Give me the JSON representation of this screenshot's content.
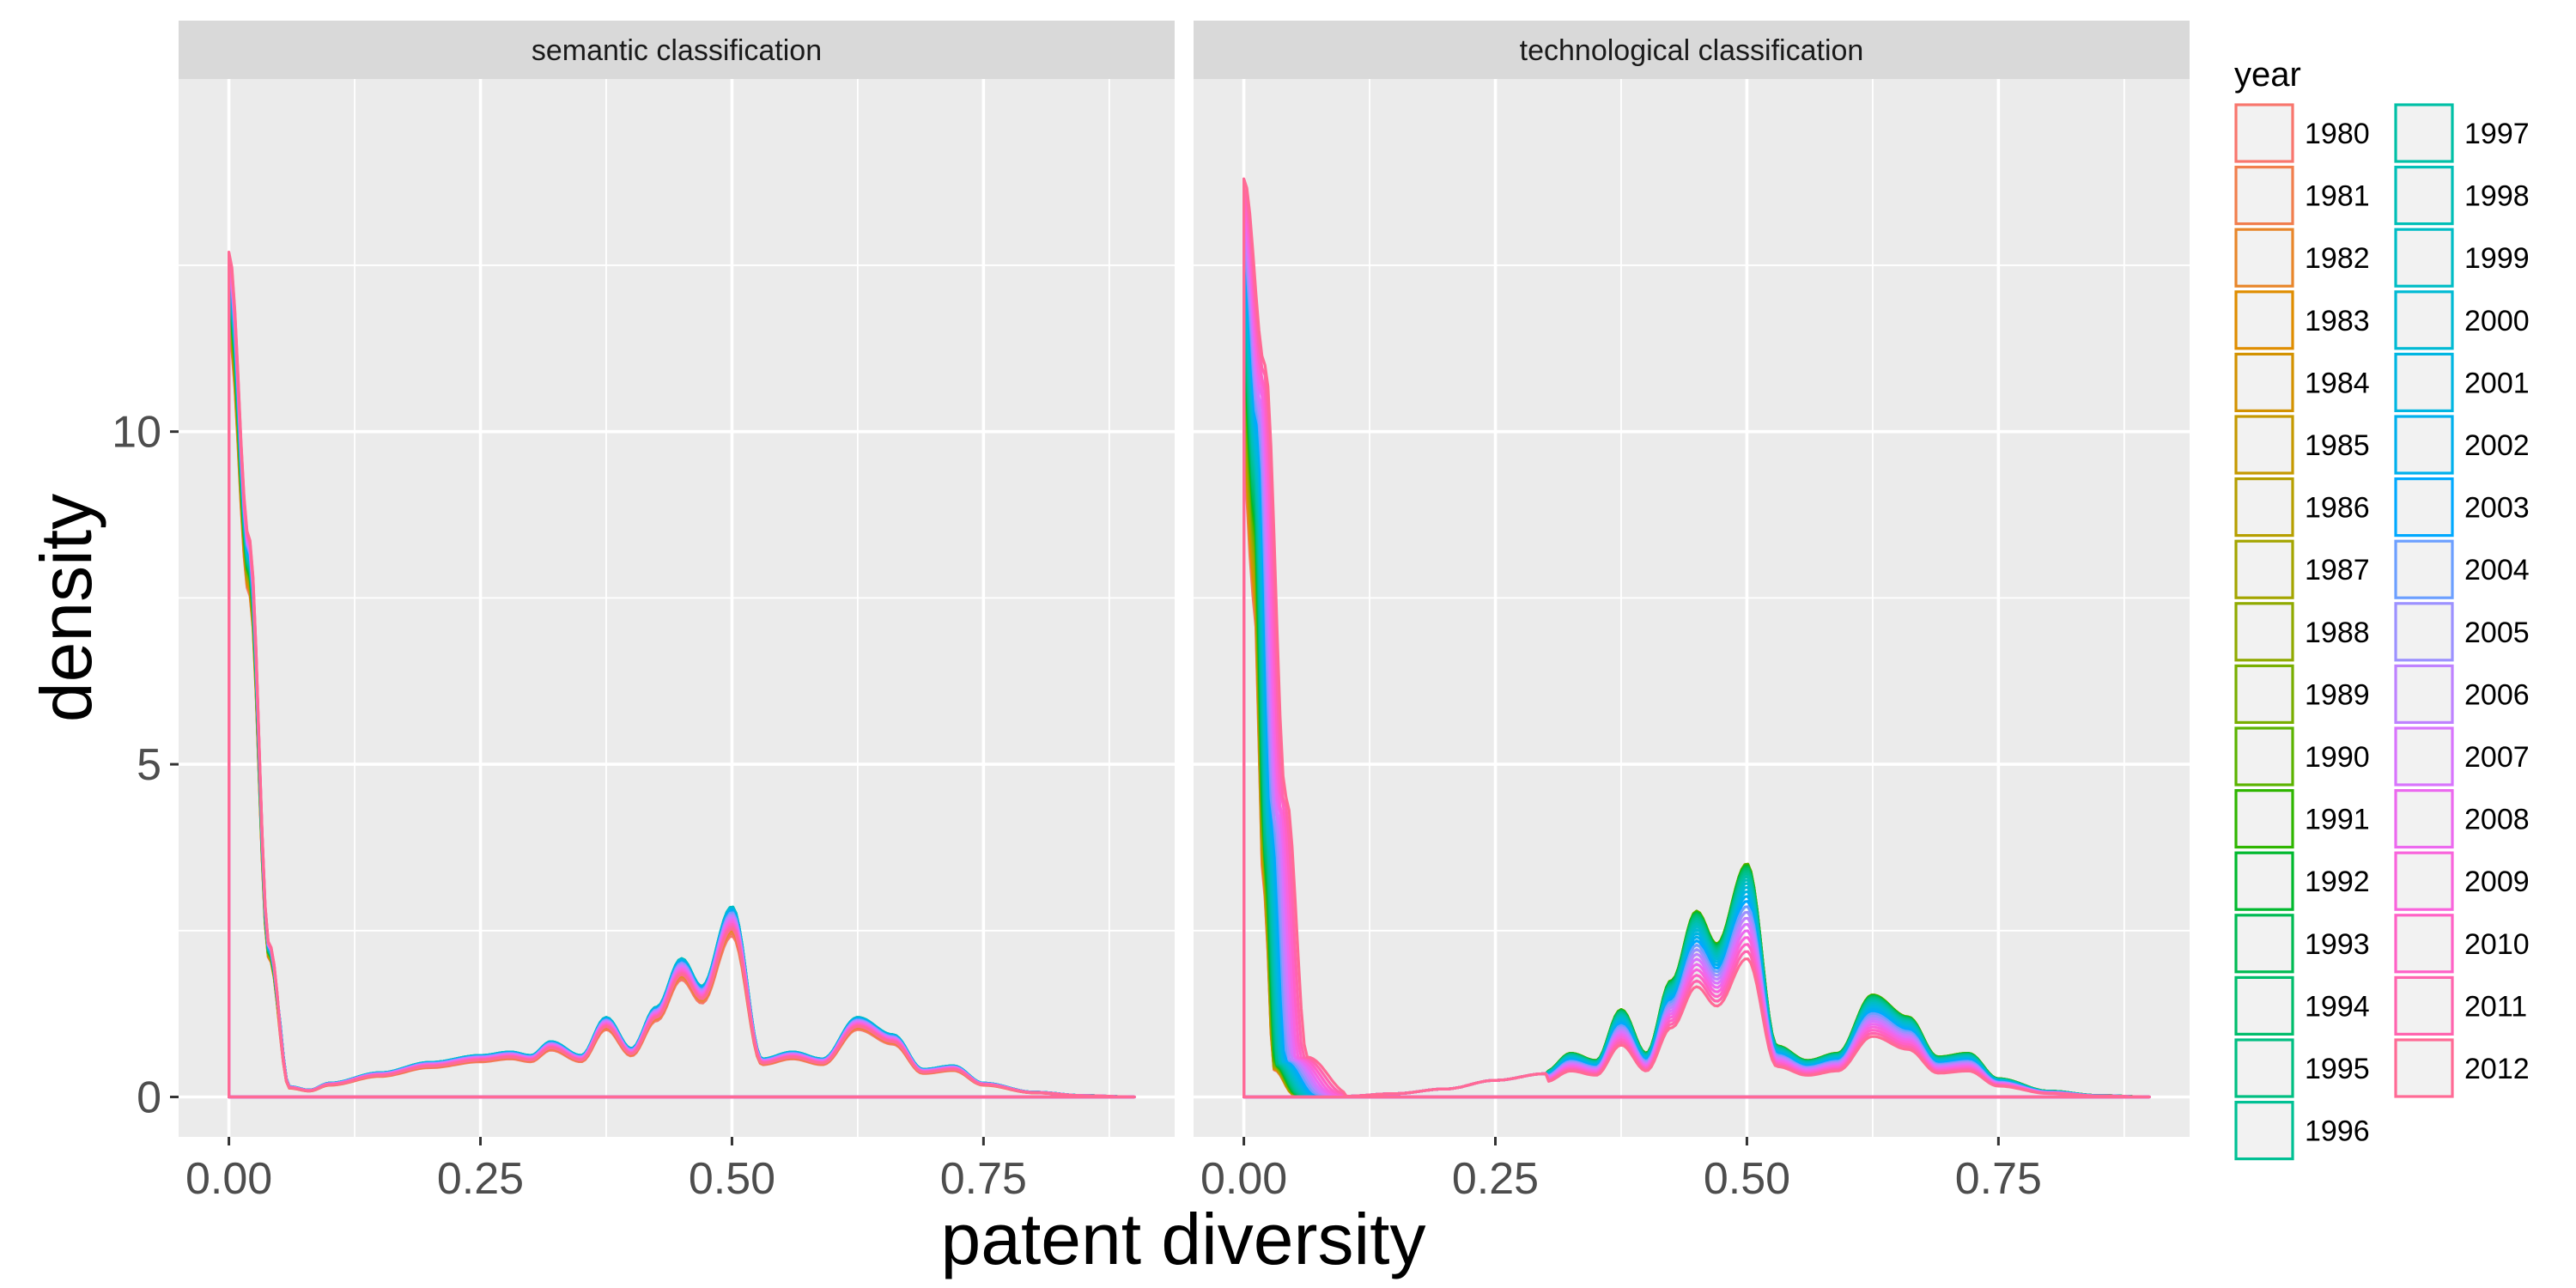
{
  "chart_data": {
    "type": "line",
    "subtype": "density",
    "xlabel": "patent diversity",
    "ylabel": "density",
    "xlim": [
      -0.05,
      0.94
    ],
    "ylim": [
      -0.6,
      15.3
    ],
    "x_ticks": [
      0.0,
      0.25,
      0.5,
      0.75
    ],
    "x_tick_labels": [
      "0.00",
      "0.25",
      "0.50",
      "0.75"
    ],
    "x_minor_ticks": [
      0.125,
      0.375,
      0.625,
      0.875
    ],
    "y_ticks": [
      0,
      5,
      10
    ],
    "y_tick_labels": [
      "0",
      "5",
      "10"
    ],
    "y_minor_ticks": [
      2.5,
      7.5,
      12.5
    ],
    "grid": true,
    "legend": {
      "title": "year",
      "placement": "right",
      "columns": 2,
      "entries": [
        "1980",
        "1981",
        "1982",
        "1983",
        "1984",
        "1985",
        "1986",
        "1987",
        "1988",
        "1989",
        "1990",
        "1991",
        "1992",
        "1993",
        "1994",
        "1995",
        "1996",
        "1997",
        "1998",
        "1999",
        "2000",
        "2001",
        "2002",
        "2003",
        "2004",
        "2005",
        "2006",
        "2007",
        "2008",
        "2009",
        "2010",
        "2011",
        "2012"
      ]
    },
    "series_colors": [
      "#f8766d",
      "#f17e4d",
      "#e8862a",
      "#df8d00",
      "#d39200",
      "#c59900",
      "#b69f00",
      "#a4a500",
      "#90aa00",
      "#78ae00",
      "#5bb300",
      "#2fb600",
      "#00b92e",
      "#00bb53",
      "#00bd6c",
      "#00bf82",
      "#00c094",
      "#00c0a6",
      "#00bfb7",
      "#00bdc6",
      "#00bad4",
      "#00b6e2",
      "#00b0ed",
      "#00a9ff",
      "#6c9fff",
      "#9c91ff",
      "#be82ff",
      "#d874fd",
      "#ec69ef",
      "#f964dc",
      "#ff61c6",
      "#ff64ae",
      "#ff6a95"
    ],
    "facets": [
      {
        "label": "semantic classification",
        "base_curve": {
          "x": [
            0.0,
            0.02,
            0.04,
            0.06,
            0.08,
            0.1,
            0.15,
            0.2,
            0.25,
            0.28,
            0.3,
            0.32,
            0.35,
            0.375,
            0.4,
            0.425,
            0.45,
            0.47,
            0.5,
            0.53,
            0.56,
            0.59,
            0.625,
            0.66,
            0.69,
            0.72,
            0.75,
            0.8,
            0.85,
            0.9
          ],
          "y": [
            12.7,
            8.4,
            2.3,
            0.15,
            0.1,
            0.2,
            0.35,
            0.5,
            0.6,
            0.65,
            0.6,
            0.8,
            0.6,
            1.15,
            0.7,
            1.3,
            2.0,
            1.6,
            2.75,
            0.55,
            0.65,
            0.55,
            1.15,
            0.9,
            0.4,
            0.45,
            0.2,
            0.07,
            0.02,
            0.0
          ]
        },
        "year_variation": "curves for all 33 years nearly overlap; later years slightly higher spike at 0, earlier years slightly lower peaks"
      },
      {
        "label": "technological classification",
        "base_curve": {
          "x": [
            0.0,
            0.01,
            0.02,
            0.03,
            0.05,
            0.07,
            0.1,
            0.15,
            0.2,
            0.25,
            0.3,
            0.325,
            0.35,
            0.375,
            0.4,
            0.425,
            0.45,
            0.47,
            0.5,
            0.53,
            0.56,
            0.59,
            0.625,
            0.66,
            0.69,
            0.72,
            0.75,
            0.8,
            0.85,
            0.9
          ],
          "y": [
            13.8,
            11.0,
            4.5,
            0.6,
            0.05,
            0.0,
            0.01,
            0.05,
            0.12,
            0.25,
            0.35,
            0.6,
            0.5,
            1.2,
            0.6,
            1.6,
            2.55,
            2.1,
            3.2,
            0.7,
            0.5,
            0.6,
            1.4,
            1.1,
            0.55,
            0.6,
            0.25,
            0.08,
            0.02,
            0.0
          ]
        },
        "year_variation": "later years (pink/red) have lower peaks at 0.45–0.75 and a wider spike near 0; mid years (green) highest at 0.625"
      }
    ]
  }
}
